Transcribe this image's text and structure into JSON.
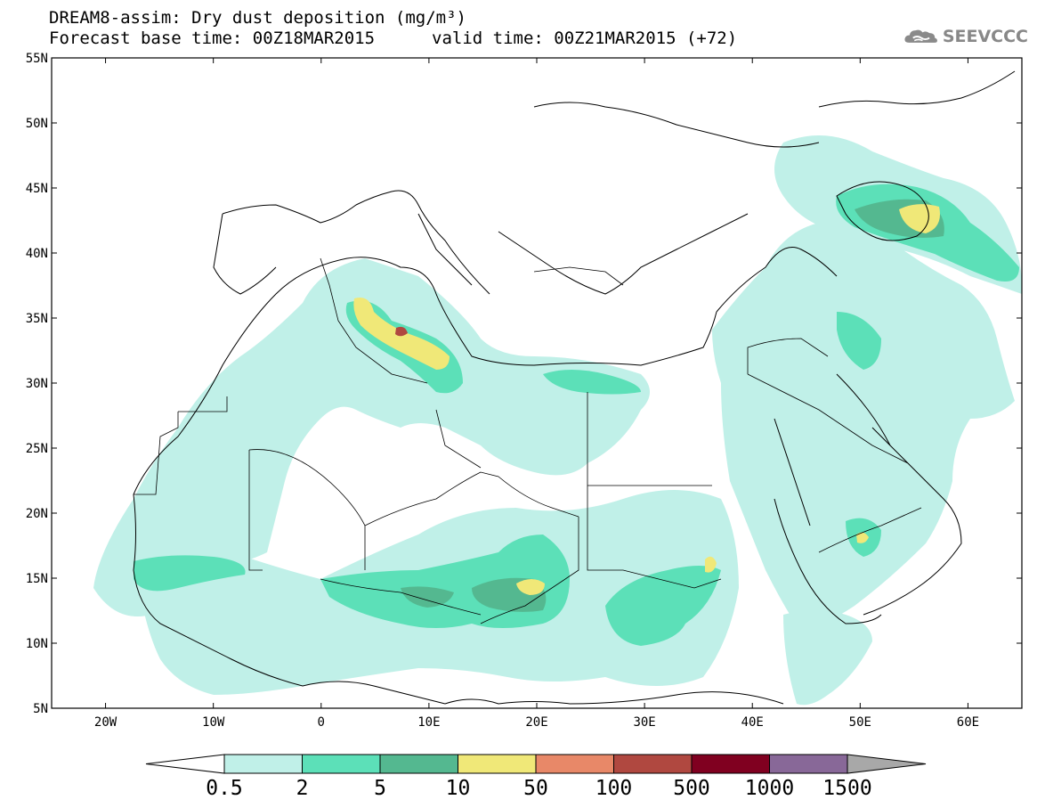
{
  "title": {
    "line1": "DREAM8-assim: Dry dust deposition (mg/m³)",
    "line2": "Forecast base time: 00Z18MAR2015",
    "valid": "valid time: 00Z21MAR2015 (+72)"
  },
  "logo": {
    "text": "SEEVCCC",
    "icon": "cloud-icon"
  },
  "map": {
    "region": "North Africa / Middle East",
    "lon_range": [
      -25,
      65
    ],
    "lat_range": [
      5,
      55
    ],
    "lat_labels": [
      "55N",
      "50N",
      "45N",
      "40N",
      "35N",
      "30N",
      "25N",
      "20N",
      "15N",
      "10N",
      "5N"
    ],
    "lon_labels": [
      "20W",
      "10W",
      "0",
      "10E",
      "20E",
      "30E",
      "40E",
      "50E",
      "60E"
    ]
  },
  "legend": {
    "labels": [
      "0.5",
      "2",
      "5",
      "10",
      "50",
      "100",
      "500",
      "1000",
      "1500"
    ],
    "colors": [
      "#c0f0e8",
      "#5ce0b8",
      "#54b890",
      "#f0e878",
      "#e88868",
      "#b04840",
      "#800020",
      "#886898"
    ],
    "under_color": "#ffffff",
    "over_color": "#a8a8a8"
  },
  "colors": {
    "level1": "#c0f0e8",
    "level2": "#5ce0b8",
    "level3": "#54b890",
    "level4": "#f0e878",
    "level5": "#e88868",
    "level6": "#b04840"
  }
}
